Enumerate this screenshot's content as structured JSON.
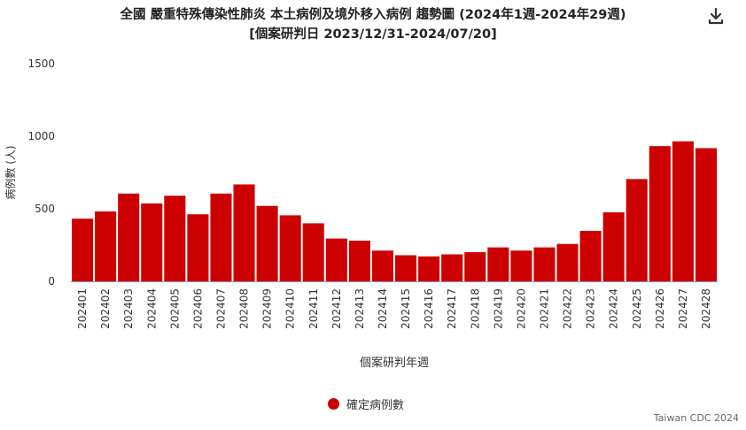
{
  "header": {
    "title_line1": "全國 嚴重特殊傳染性肺炎 本土病例及境外移入病例 趨勢圖 (2024年1週-2024年29週)",
    "title_line2": "[個案研判日 2023/12/31-2024/07/20]",
    "download_icon": "download-icon"
  },
  "colors": {
    "bar": "#cc0000",
    "axis_text": "#333333",
    "grid": "#e6e6e6"
  },
  "chart_data": {
    "type": "bar",
    "xlabel": "個案研判年週",
    "ylabel": "病例數 (人)",
    "ylim": [
      0,
      1500
    ],
    "yticks": [
      0,
      500,
      1000,
      1500
    ],
    "grid": false,
    "legend_position": "bottom-center",
    "categories": [
      "202401",
      "202402",
      "202403",
      "202404",
      "202405",
      "202406",
      "202407",
      "202408",
      "202409",
      "202410",
      "202411",
      "202412",
      "202413",
      "202414",
      "202415",
      "202416",
      "202417",
      "202418",
      "202419",
      "202420",
      "202421",
      "202422",
      "202423",
      "202424",
      "202425",
      "202426",
      "202427",
      "202428"
    ],
    "series": [
      {
        "name": "確定病例數",
        "color": "#cc0000",
        "values": [
          432,
          482,
          605,
          537,
          590,
          462,
          605,
          668,
          520,
          455,
          400,
          295,
          280,
          212,
          180,
          172,
          186,
          201,
          234,
          212,
          234,
          258,
          348,
          476,
          705,
          932,
          965,
          918
        ]
      }
    ]
  },
  "footer": {
    "credit": "Taiwan CDC 2024"
  }
}
